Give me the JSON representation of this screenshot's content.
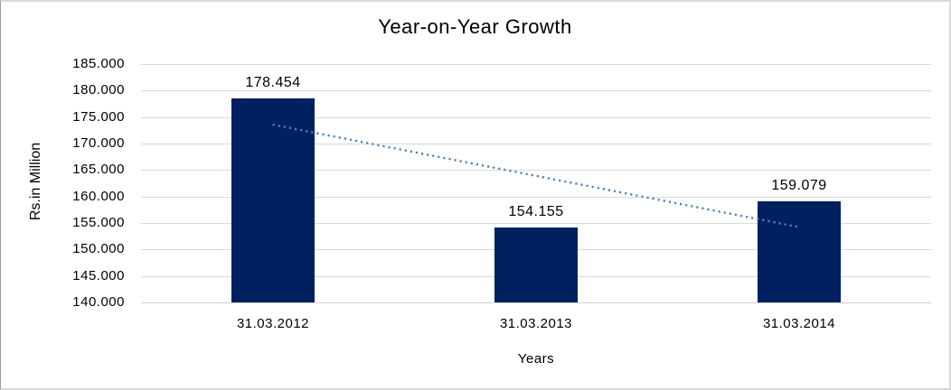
{
  "chart_data": {
    "type": "bar",
    "title": "Year-on-Year Growth",
    "xlabel": "Years",
    "ylabel": "Rs.in Million",
    "categories": [
      "31.03.2012",
      "31.03.2013",
      "31.03.2014"
    ],
    "values": [
      178454,
      154155,
      159079
    ],
    "value_labels": [
      "178.454",
      "154.155",
      "159.079"
    ],
    "yticks": [
      185000,
      180000,
      175000,
      170000,
      165000,
      160000,
      155000,
      150000,
      145000,
      140000
    ],
    "ytick_labels": [
      "185.000",
      "180.000",
      "175.000",
      "170.000",
      "165.000",
      "160.000",
      "155.000",
      "150.000",
      "145.000",
      "140.000"
    ],
    "ylim": [
      140000,
      185000
    ],
    "grid": true,
    "legend": "none",
    "trendline": {
      "type": "linear",
      "style": "dotted"
    },
    "colors": {
      "bar": "#002060",
      "trendline": "#4f81bd",
      "gridline": "#d9d9d9",
      "text": "#000000"
    }
  }
}
